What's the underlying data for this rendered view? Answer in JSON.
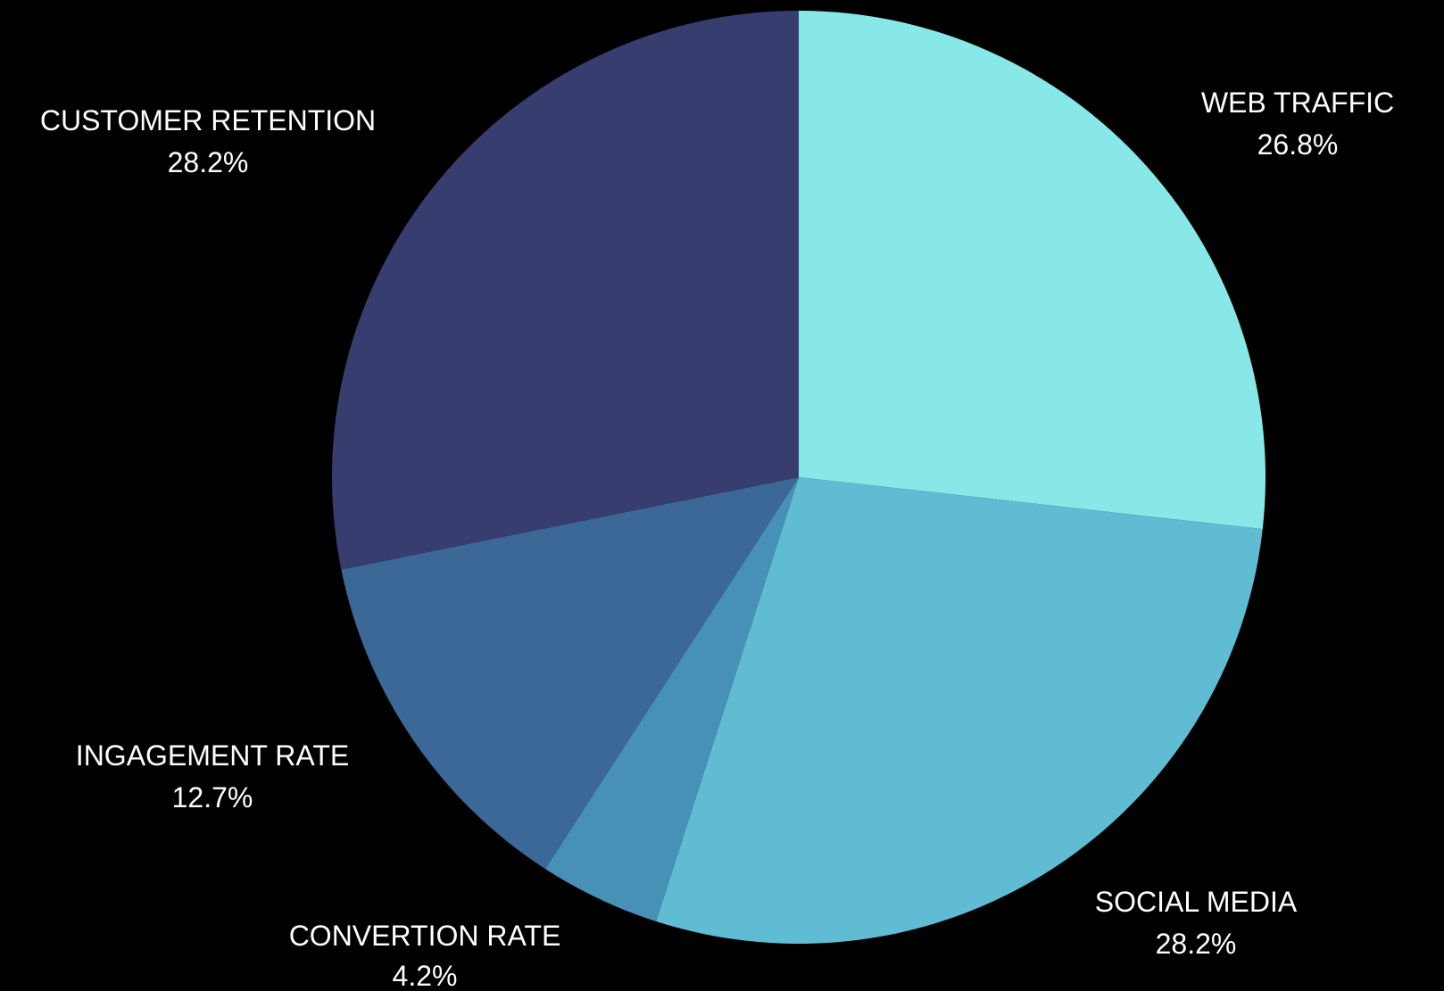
{
  "chart_data": {
    "type": "pie",
    "title": "",
    "slices": [
      {
        "label": "WEB TRAFFIC",
        "value": 26.8,
        "value_label": "26.8%",
        "color": "#88e8e8"
      },
      {
        "label": "SOCIAL MEDIA",
        "value": 28.2,
        "value_label": "28.2%",
        "color": "#5fbcd3"
      },
      {
        "label": "CONVERTION RATE",
        "value": 4.2,
        "value_label": "4.2%",
        "color": "#4791b7"
      },
      {
        "label": "INGAGEMENT RATE",
        "value": 12.7,
        "value_label": "12.7%",
        "color": "#3c6898"
      },
      {
        "label": "CUSTOMER RETENTION",
        "value": 28.2,
        "value_label": "28.2%",
        "color": "#373d6e"
      }
    ],
    "start_angle": "12 o'clock",
    "direction": "clockwise",
    "legend": "none",
    "background": "#000000",
    "label_color": "#ffffff"
  }
}
